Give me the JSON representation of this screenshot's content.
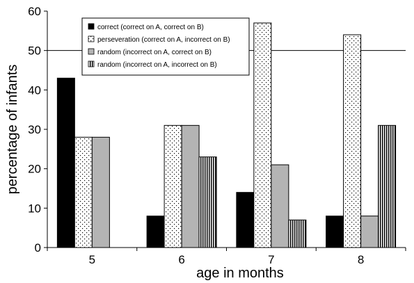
{
  "chart_data": {
    "type": "bar",
    "categories": [
      "5",
      "6",
      "7",
      "8"
    ],
    "series": [
      {
        "name": "correct (correct on A, correct on B)",
        "values": [
          43,
          8,
          14,
          8
        ],
        "pattern": "solid-black"
      },
      {
        "name": "perseveration (correct on A, incorrect on B)",
        "values": [
          28,
          31,
          57,
          54
        ],
        "pattern": "dots"
      },
      {
        "name": "random (incorrect on A, correct on B)",
        "values": [
          28,
          31,
          21,
          8
        ],
        "pattern": "solid-gray"
      },
      {
        "name": "random (incorrect on A, incorrect on B)",
        "values": [
          0,
          23,
          7,
          31
        ],
        "pattern": "vertical-stripes"
      }
    ],
    "xlabel": "age in months",
    "ylabel": "percentage of infants",
    "ylim": [
      0,
      60
    ],
    "yticks": [
      0,
      10,
      20,
      30,
      40,
      50,
      60
    ],
    "reference_line": 50,
    "legend_position": "top-left",
    "colors": {
      "black": "#000000",
      "gray": "#b4b4b4",
      "white": "#ffffff"
    }
  }
}
